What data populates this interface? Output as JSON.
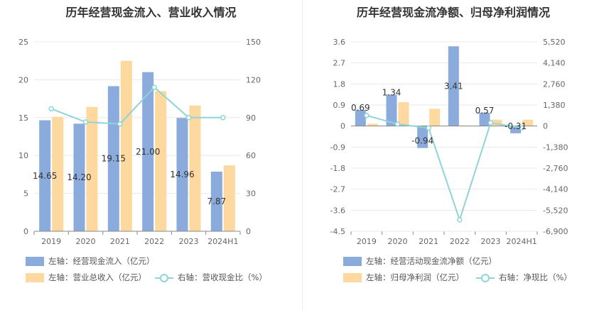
{
  "colors": {
    "blue": "#8aabdc",
    "orange": "#fdd9a0",
    "teal": "#8fd4d8",
    "grid": "#e8e8e8",
    "axis": "#888888"
  },
  "chart_data": [
    {
      "type": "bar",
      "title": "历年经营现金流入、营业收入情况",
      "categories": [
        "2019",
        "2020",
        "2021",
        "2022",
        "2023",
        "2024H1"
      ],
      "left_axis": {
        "min": 0,
        "max": 25,
        "ticks": [
          "0",
          "5",
          "10",
          "15",
          "20",
          "25"
        ]
      },
      "right_axis": {
        "min": 0,
        "max": 150,
        "ticks": [
          "0",
          "30",
          "60",
          "90",
          "120",
          "150"
        ]
      },
      "series": [
        {
          "name": "左轴：经营现金流入（亿元）",
          "axis": "left",
          "kind": "bar",
          "values": [
            14.65,
            14.2,
            19.15,
            21.0,
            14.96,
            7.87
          ],
          "labels": [
            "14.65",
            "14.20",
            "19.15",
            "21.00",
            "14.96",
            "7.87"
          ]
        },
        {
          "name": "左轴：营业总收入（亿元）",
          "axis": "left",
          "kind": "bar",
          "values": [
            15.1,
            16.4,
            22.5,
            18.5,
            16.6,
            8.7
          ]
        },
        {
          "name": "右轴：营收现金比（%）",
          "axis": "right",
          "kind": "line",
          "values": [
            97.0,
            86.5,
            85.0,
            114.0,
            90.0,
            90.0
          ]
        }
      ]
    },
    {
      "type": "bar",
      "title": "历年经营现金流净额、归母净利润情况",
      "categories": [
        "2019",
        "2020",
        "2021",
        "2022",
        "2023",
        "2024H1"
      ],
      "left_axis": {
        "min": -4.5,
        "max": 3.6,
        "ticks": [
          "-4.5",
          "-3.6",
          "-2.7",
          "-1.8",
          "-0.9",
          "0",
          "0.9",
          "1.8",
          "2.7",
          "3.6"
        ]
      },
      "right_axis": {
        "min": -6900,
        "max": 5520,
        "ticks": [
          "-6,900",
          "-5,520",
          "-4,140",
          "-2,760",
          "-1,380",
          "0",
          "1,380",
          "2,760",
          "4,140",
          "5,520"
        ]
      },
      "series": [
        {
          "name": "左轴：经营活动现金流净额（亿元）",
          "axis": "left",
          "kind": "bar",
          "values": [
            0.69,
            1.34,
            -0.94,
            3.41,
            0.57,
            -0.31
          ],
          "labels": [
            "0.69",
            "1.34",
            "-0.94",
            "3.41",
            "0.57",
            "-0.31"
          ]
        },
        {
          "name": "左轴：归母净利润（亿元）",
          "axis": "left",
          "kind": "bar",
          "values": [
            0.1,
            1.02,
            0.74,
            -0.02,
            0.27,
            0.27
          ]
        },
        {
          "name": "右轴：净现比（%）",
          "axis": "right",
          "kind": "line",
          "values": [
            690,
            131,
            -127,
            -6150,
            211,
            -115
          ]
        }
      ]
    }
  ]
}
